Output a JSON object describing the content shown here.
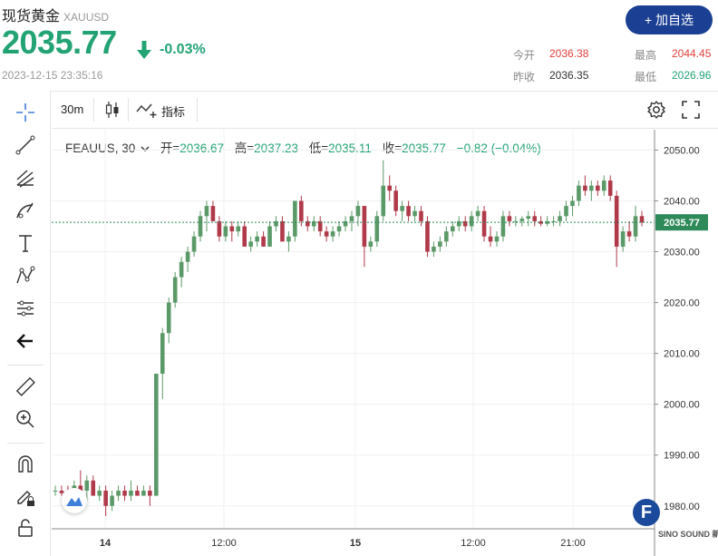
{
  "header": {
    "title": "现货黄金",
    "code": "XAUUSD",
    "price": "2035.77",
    "change_pct": "-0.03%",
    "timestamp": "2023-12-15 23:35:16",
    "add_button": "+ 加自选",
    "stats": {
      "open_label": "今开",
      "open": "2036.38",
      "high_label": "最高",
      "high": "2044.45",
      "prev_close_label": "昨收",
      "prev_close": "2036.35",
      "low_label": "最低",
      "low": "2026.96"
    }
  },
  "toolbar": {
    "interval": "30m",
    "indicators_label": "指标",
    "left_tools": [
      "crosshair-icon",
      "trend-line-icon",
      "fib-icon",
      "brush-icon",
      "text-icon",
      "pattern-icon",
      "measure-icon",
      "back-arrow-icon",
      "ruler-icon",
      "zoom-in-icon",
      "magnet-icon",
      "lock-pencil-icon",
      "lock-icon"
    ]
  },
  "legend": {
    "symbol": "FEAUUS, 30",
    "open_label": "开=",
    "open": "2036.67",
    "high_label": "高=",
    "high": "2037.23",
    "low_label": "低=",
    "low": "2035.11",
    "close_label": "收=",
    "close": "2035.77",
    "change": "−0.82 (−0.04%)"
  },
  "watermark": {
    "letter": "F",
    "text": "SINO SOUND 新浪财经"
  },
  "colors": {
    "up": "#23a374",
    "down": "#b03a4a",
    "accent": "#1a3f93"
  },
  "chart_data": {
    "type": "candlestick",
    "y_ticks": [
      "2050.00",
      "2040.00",
      "2030.00",
      "2020.00",
      "2010.00",
      "2000.00",
      "1990.00",
      "1980.00"
    ],
    "ylim": [
      1975.5,
      2054
    ],
    "x_ticks": [
      "14",
      "12:00",
      "15",
      "12:00",
      "21:00"
    ],
    "last_price": "2035.77",
    "series": [
      [
        1983,
        1984,
        1982,
        1983
      ],
      [
        1983,
        1984,
        1982,
        1982.5
      ],
      [
        1982.5,
        1984,
        1980,
        1981
      ],
      [
        1981,
        1985,
        1980,
        1984
      ],
      [
        1984,
        1987,
        1982,
        1983
      ],
      [
        1983,
        1986,
        1981,
        1985
      ],
      [
        1985,
        1986,
        1982,
        1982
      ],
      [
        1982,
        1984,
        1981,
        1983
      ],
      [
        1983,
        1984,
        1978,
        1980
      ],
      [
        1980,
        1983,
        1979,
        1982
      ],
      [
        1982,
        1984,
        1981,
        1983
      ],
      [
        1983,
        1984,
        1981,
        1982
      ],
      [
        1982,
        1985,
        1981,
        1983
      ],
      [
        1983,
        1984,
        1982,
        1982
      ],
      [
        1982,
        1984,
        1982,
        1983
      ],
      [
        1983,
        1984,
        1980,
        1982
      ],
      [
        1982,
        2006,
        1982,
        2006
      ],
      [
        2006,
        2015,
        2001,
        2014
      ],
      [
        2014,
        2021,
        2012,
        2020
      ],
      [
        2020,
        2026,
        2019,
        2025
      ],
      [
        2025,
        2029,
        2023,
        2028
      ],
      [
        2028,
        2031,
        2026,
        2030
      ],
      [
        2030,
        2034,
        2029,
        2033
      ],
      [
        2033,
        2038,
        2032,
        2037
      ],
      [
        2037,
        2040,
        2034,
        2039
      ],
      [
        2039,
        2040,
        2036,
        2036
      ],
      [
        2036,
        2037,
        2032,
        2033
      ],
      [
        2033,
        2036,
        2032,
        2035
      ],
      [
        2035,
        2036,
        2032,
        2034
      ],
      [
        2034,
        2036,
        2033,
        2035
      ],
      [
        2035,
        2036,
        2031,
        2031
      ],
      [
        2031,
        2033,
        2030,
        2032
      ],
      [
        2032,
        2034,
        2031,
        2033
      ],
      [
        2033,
        2034,
        2031,
        2031
      ],
      [
        2031,
        2036,
        2031,
        2035
      ],
      [
        2035,
        2037,
        2034,
        2036
      ],
      [
        2036,
        2037,
        2032,
        2032
      ],
      [
        2032,
        2034,
        2030,
        2033
      ],
      [
        2033,
        2040,
        2032,
        2040
      ],
      [
        2040,
        2041,
        2035,
        2036
      ],
      [
        2036,
        2037,
        2034,
        2035
      ],
      [
        2035,
        2037,
        2034,
        2036
      ],
      [
        2036,
        2037,
        2033,
        2034
      ],
      [
        2034,
        2035,
        2032,
        2033
      ],
      [
        2033,
        2035,
        2032,
        2034
      ],
      [
        2034,
        2036,
        2033,
        2035
      ],
      [
        2035,
        2037,
        2034,
        2036
      ],
      [
        2036,
        2038,
        2034,
        2037
      ],
      [
        2037,
        2040,
        2035,
        2039
      ],
      [
        2039,
        2039,
        2027,
        2031
      ],
      [
        2031,
        2033,
        2030,
        2032
      ],
      [
        2032,
        2038,
        2031,
        2037
      ],
      [
        2037,
        2048,
        2036,
        2043
      ],
      [
        2043,
        2045,
        2040,
        2042
      ],
      [
        2042,
        2043,
        2037,
        2038
      ],
      [
        2038,
        2040,
        2036,
        2039
      ],
      [
        2039,
        2040,
        2036,
        2037
      ],
      [
        2037,
        2039,
        2036,
        2038
      ],
      [
        2038,
        2039,
        2035,
        2036
      ],
      [
        2036,
        2037,
        2029,
        2030
      ],
      [
        2030,
        2032,
        2029,
        2031
      ],
      [
        2031,
        2033,
        2030,
        2032
      ],
      [
        2032,
        2035,
        2031,
        2034
      ],
      [
        2034,
        2036,
        2033,
        2035
      ],
      [
        2035,
        2037,
        2034,
        2036
      ],
      [
        2036,
        2037,
        2034,
        2035
      ],
      [
        2035,
        2038,
        2034,
        2037
      ],
      [
        2037,
        2039,
        2036,
        2038
      ],
      [
        2038,
        2039,
        2032,
        2033
      ],
      [
        2033,
        2035,
        2031,
        2032
      ],
      [
        2032,
        2034,
        2031,
        2033
      ],
      [
        2033,
        2038,
        2032,
        2037
      ],
      [
        2037,
        2038,
        2035,
        2036
      ],
      [
        2036,
        2037,
        2035,
        2036
      ],
      [
        2036,
        2037,
        2035,
        2036.5
      ],
      [
        2036.5,
        2038,
        2035,
        2037
      ],
      [
        2037,
        2038,
        2035,
        2036
      ],
      [
        2036,
        2037,
        2035,
        2035.5
      ],
      [
        2035.5,
        2037,
        2035,
        2036
      ],
      [
        2036,
        2037,
        2035,
        2036
      ],
      [
        2036,
        2038,
        2035,
        2037
      ],
      [
        2037,
        2040,
        2036,
        2039
      ],
      [
        2039,
        2041,
        2037,
        2040
      ],
      [
        2040,
        2044,
        2039,
        2043
      ],
      [
        2043,
        2045,
        2041,
        2042
      ],
      [
        2042,
        2044,
        2040,
        2043
      ],
      [
        2043,
        2044,
        2041,
        2042
      ],
      [
        2042,
        2045,
        2041,
        2044
      ],
      [
        2044,
        2045,
        2040,
        2041
      ],
      [
        2041,
        2042,
        2027,
        2031
      ],
      [
        2031,
        2035,
        2030,
        2034
      ],
      [
        2034,
        2036,
        2032,
        2033
      ],
      [
        2033,
        2039,
        2032,
        2037
      ],
      [
        2037,
        2038,
        2035,
        2035.77
      ]
    ]
  }
}
